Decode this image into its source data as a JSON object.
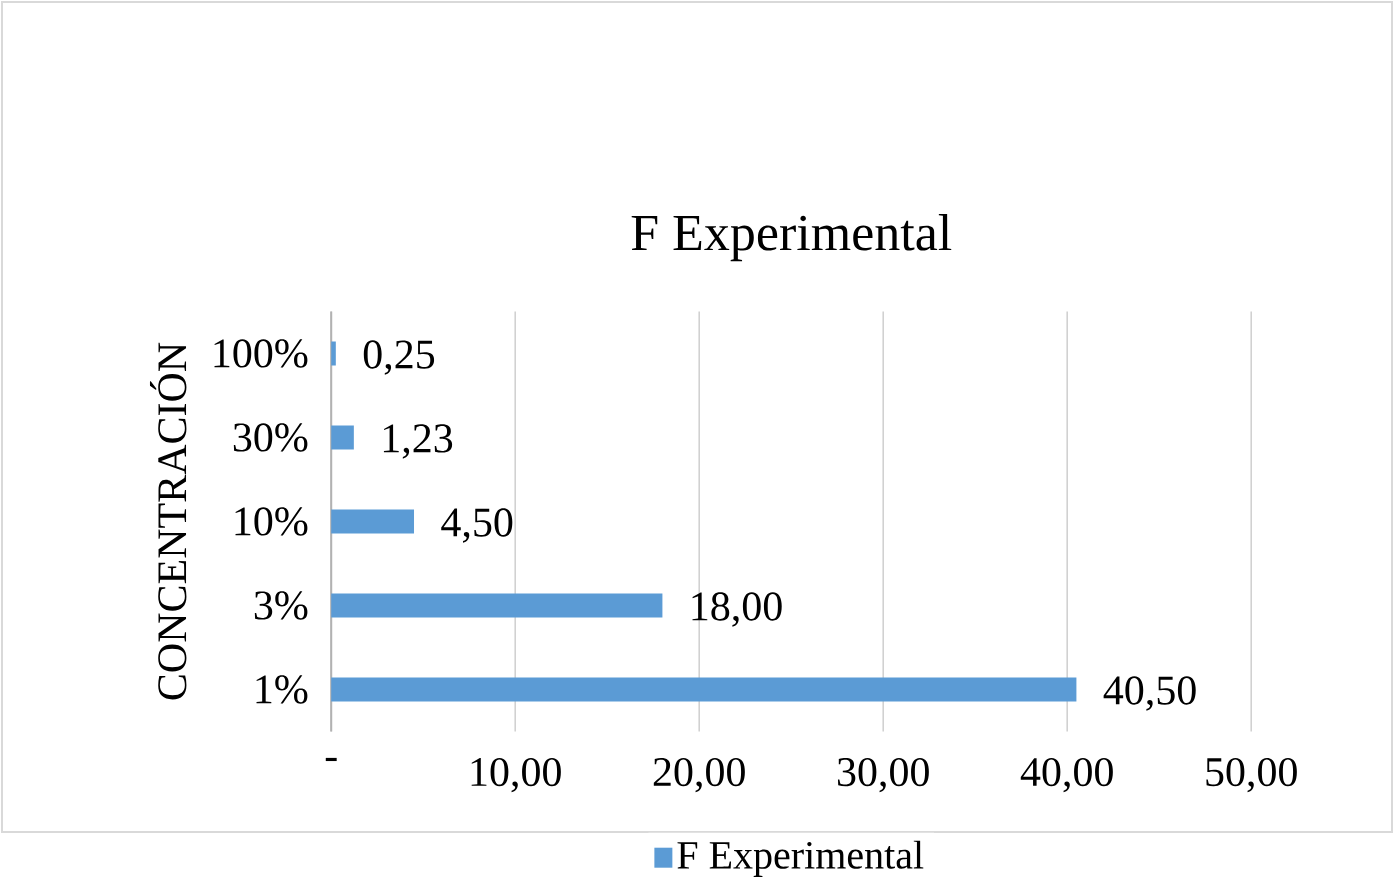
{
  "chart_data": {
    "type": "bar",
    "orientation": "horizontal",
    "title": "F Experimental",
    "ylabel": "CONCENTRACIÓN",
    "categories": [
      "100%",
      "30%",
      "10%",
      "3%",
      "1%"
    ],
    "series": [
      {
        "name": "F Experimental",
        "color": "#5b9bd5",
        "values": [
          0.25,
          1.23,
          4.5,
          18.0,
          40.5
        ],
        "value_labels": [
          "0,25",
          "1,23",
          "4,50",
          "18,00",
          "40,50"
        ]
      }
    ],
    "xlim": [
      0,
      50
    ],
    "xticks": [
      {
        "value": 0,
        "label": "-"
      },
      {
        "value": 10,
        "label": "10,00"
      },
      {
        "value": 20,
        "label": "20,00"
      },
      {
        "value": 30,
        "label": "30,00"
      },
      {
        "value": 40,
        "label": "40,00"
      },
      {
        "value": 50,
        "label": "50,00"
      }
    ],
    "grid": "x",
    "legend": "bottom"
  }
}
